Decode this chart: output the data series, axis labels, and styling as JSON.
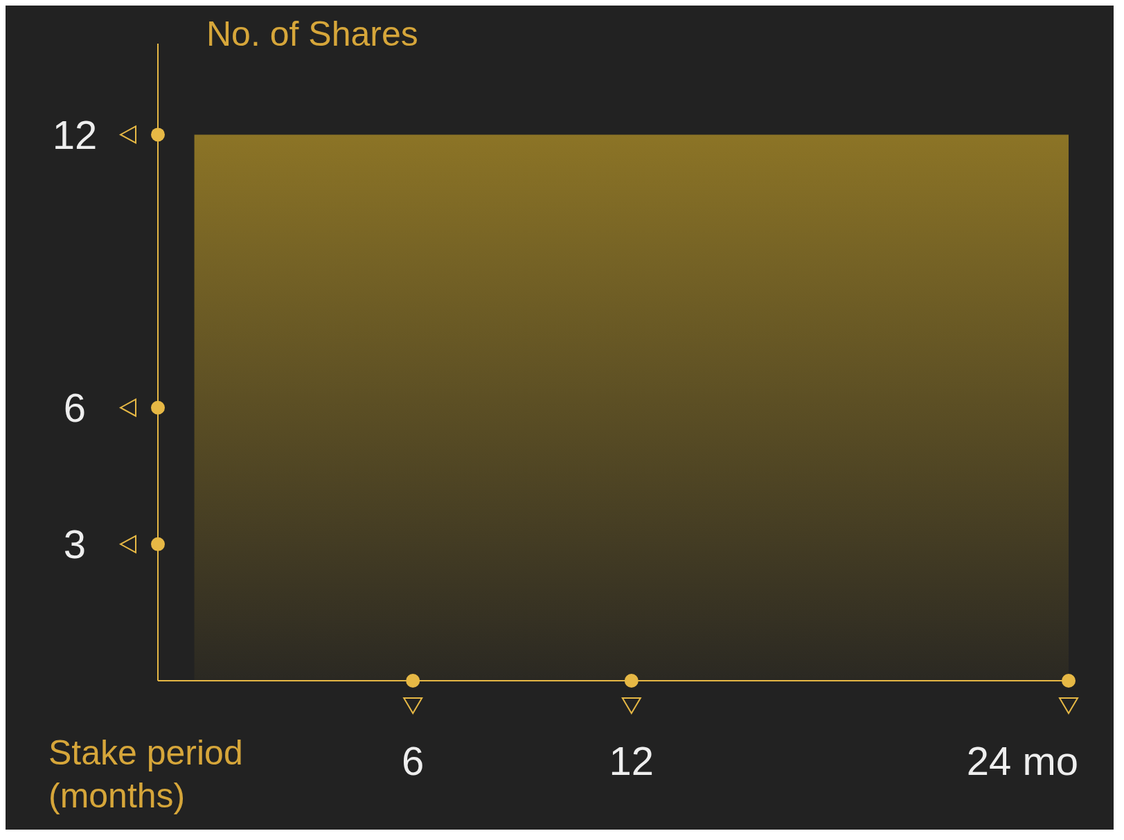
{
  "chart_data": {
    "type": "area",
    "ylabel": "No. of Shares",
    "xlabel": "Stake period (months)",
    "x": [
      0,
      24
    ],
    "values": [
      12,
      12
    ],
    "color": "#8c7426",
    "xlim": [
      -1,
      24
    ],
    "xticks": [
      6,
      12,
      {
        "value": 24,
        "label": "24 mo"
      }
    ],
    "ylim": [
      0,
      14
    ],
    "yticks": [
      3,
      6,
      12
    ],
    "grid": false,
    "legend": false
  }
}
